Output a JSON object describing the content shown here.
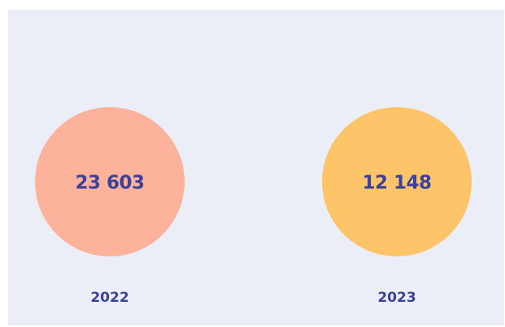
{
  "chart_data": {
    "type": "stat",
    "categories": [
      "2022",
      "2023"
    ],
    "values": [
      23603,
      12148
    ],
    "value_labels": [
      "23 603",
      "12 148"
    ],
    "colors": [
      "#fdb39b",
      "#fec46a"
    ]
  }
}
